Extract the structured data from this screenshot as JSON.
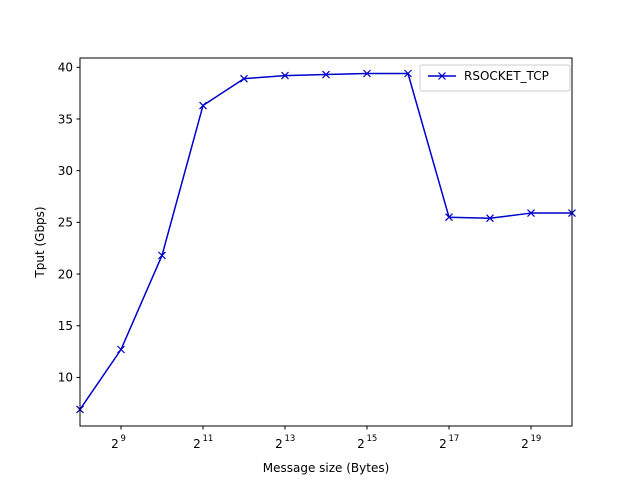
{
  "chart_data": {
    "type": "line",
    "x_scale": "log2",
    "x_tick_base": "2",
    "x_tick_exponents": [
      9,
      11,
      13,
      15,
      17,
      19
    ],
    "xlim": [
      8,
      20
    ],
    "ylim": [
      5.3,
      40.9
    ],
    "y_ticks": [
      10,
      15,
      20,
      25,
      30,
      35,
      40
    ],
    "xlabel": "Message size (Bytes)",
    "ylabel": "Tput (Gbps)",
    "grid": false,
    "legend_position": "top-right",
    "series": [
      {
        "name": "RSOCKET_TCP",
        "color": "#0000cc",
        "marker": "x",
        "x": [
          256,
          512,
          1024,
          2048,
          4096,
          8192,
          16384,
          32768,
          65536,
          131072,
          262144,
          524288,
          1048576
        ],
        "y": [
          6.9,
          12.7,
          21.8,
          36.3,
          38.9,
          39.2,
          39.3,
          39.4,
          39.4,
          25.5,
          25.4,
          25.9,
          25.9
        ]
      }
    ]
  }
}
